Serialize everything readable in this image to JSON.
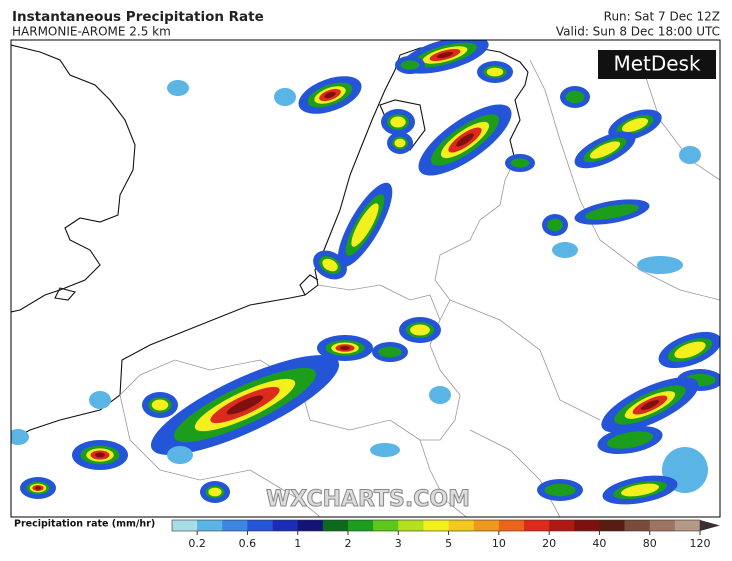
{
  "header": {
    "title": "Instantaneous Precipitation Rate",
    "subtitle": "HARMONIE-AROME 2.5 km",
    "run": "Run: Sat 7 Dec 12Z",
    "valid": "Valid: Sun 8 Dec 18:00 UTC"
  },
  "logo": "MetDesk",
  "watermark": "WXCHARTS.COM",
  "legend": {
    "label": "Precipitation rate (mm/hr)",
    "colors": [
      "#a8dce6",
      "#5ab4e6",
      "#3a86e0",
      "#2454d8",
      "#1a2cb8",
      "#141478",
      "#0c6a1c",
      "#1c9e1c",
      "#5cc81e",
      "#b4e01e",
      "#f4f01e",
      "#f4c81c",
      "#f0981c",
      "#ec641c",
      "#dc2a1c",
      "#b01814",
      "#7e1010",
      "#5a1c12",
      "#7a4a3a",
      "#9c7462",
      "#b49888",
      "#3a3034"
    ],
    "ticks": [
      0.2,
      0.6,
      1,
      2,
      3,
      5,
      10,
      20,
      40,
      80,
      120
    ]
  }
}
